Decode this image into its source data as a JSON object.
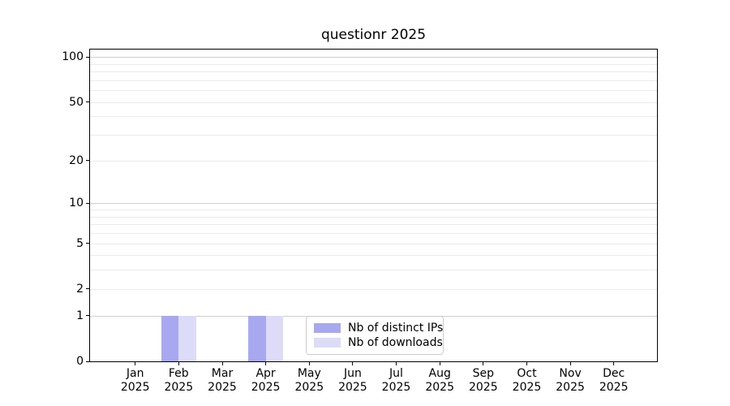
{
  "chart_data": {
    "type": "bar",
    "title": "questionr 2025",
    "categories": [
      "Jan 2025",
      "Feb 2025",
      "Mar 2025",
      "Apr 2025",
      "May 2025",
      "Jun 2025",
      "Jul 2025",
      "Aug 2025",
      "Sep 2025",
      "Oct 2025",
      "Nov 2025",
      "Dec 2025"
    ],
    "series": [
      {
        "name": "Nb of distinct IPs",
        "color": "#a8a8f0",
        "values": [
          0,
          1,
          0,
          1,
          0,
          0,
          0,
          0,
          0,
          0,
          0,
          0
        ]
      },
      {
        "name": "Nb of downloads",
        "color": "#dcdcf8",
        "values": [
          0,
          1,
          0,
          1,
          0,
          0,
          0,
          0,
          0,
          0,
          0,
          0
        ]
      }
    ],
    "xlabel": "",
    "ylabel": "",
    "yscale": "log1p",
    "ylim": [
      0,
      112
    ],
    "yticks": [
      0,
      1,
      2,
      5,
      10,
      20,
      50,
      100
    ],
    "major_gridlines": [
      1,
      10,
      100
    ],
    "minor_gridlines": [
      2,
      3,
      4,
      5,
      6,
      7,
      8,
      9,
      20,
      30,
      40,
      50,
      60,
      70,
      80,
      90
    ],
    "grid": true,
    "legend": {
      "position": "lower center",
      "entries": [
        "Nb of distinct IPs",
        "Nb of downloads"
      ]
    }
  },
  "styles": {
    "background": "#ffffff",
    "axis_color": "#000000",
    "text_color": "#000000",
    "major_grid_color": "#cfcfcf",
    "minor_grid_color": "#ebebeb",
    "legend_border_color": "#cccccc"
  }
}
